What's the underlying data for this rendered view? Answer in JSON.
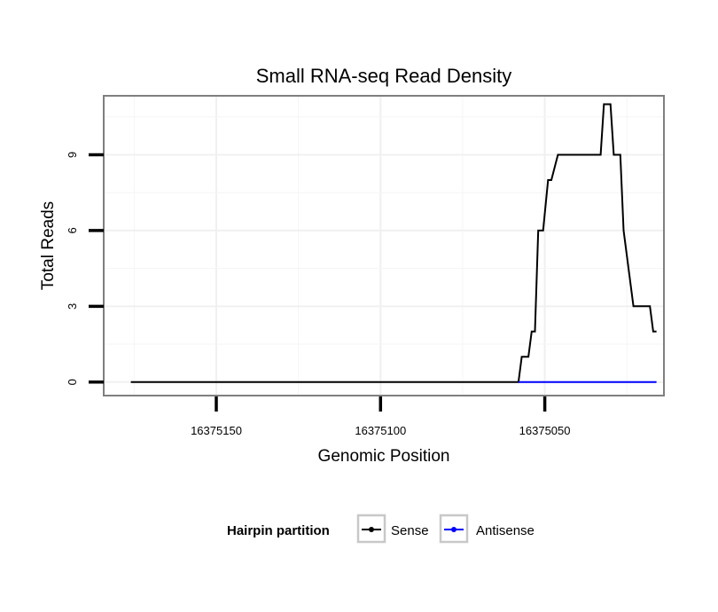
{
  "chart_data": {
    "type": "line",
    "title": "Small RNA-seq Read Density",
    "xlabel": "Genomic Position",
    "ylabel": "Total Reads",
    "xlim": [
      16375184,
      16375014
    ],
    "x_reversed": true,
    "ylim": [
      -0.5,
      11.3
    ],
    "x_ticks": [
      16375150,
      16375100,
      16375050
    ],
    "x_tick_labels": [
      "16375150",
      "16375100",
      "16375050"
    ],
    "y_ticks": [
      0,
      3,
      6,
      9
    ],
    "y_tick_labels": [
      "0",
      "3",
      "6",
      "9"
    ],
    "grid": true,
    "legend": {
      "title": "Hairpin partition",
      "position": "bottom",
      "entries": [
        "Sense",
        "Antisense"
      ]
    },
    "series": [
      {
        "name": "Sense",
        "color": "#000000",
        "x": [
          16375176,
          16375058,
          16375057,
          16375055,
          16375054,
          16375053,
          16375052,
          16375050.5,
          16375049,
          16375048,
          16375046,
          16375045,
          16375044,
          16375033,
          16375032,
          16375030,
          16375029,
          16375027,
          16375026,
          16375025,
          16375023,
          16375018,
          16375017,
          16375016
        ],
        "y": [
          0,
          0,
          1,
          1,
          2,
          2,
          6,
          6,
          8,
          8,
          9,
          9,
          9,
          9,
          11,
          11,
          9,
          9,
          6,
          5,
          3,
          3,
          2,
          2
        ]
      },
      {
        "name": "Antisense",
        "color": "#0000ff",
        "x": [
          16375058,
          16375016
        ],
        "y": [
          0,
          0
        ]
      }
    ]
  }
}
